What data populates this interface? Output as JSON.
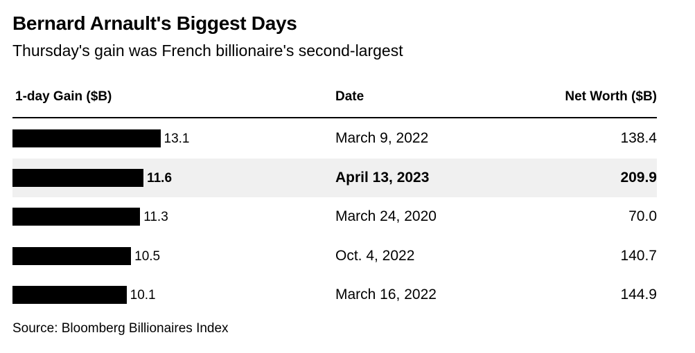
{
  "title": "Bernard Arnault's Biggest Days",
  "subtitle": "Thursday's gain was French billionaire's second-largest",
  "source": "Source: Bloomberg Billionaires Index",
  "chart_data": {
    "type": "table",
    "columns": [
      "1-day Gain ($B)",
      "Date",
      "Net Worth ($B)"
    ],
    "rows": [
      {
        "gain": 13.1,
        "gain_label": "13.1",
        "date": "March 9, 2022",
        "net_worth": "138.4",
        "highlight": false
      },
      {
        "gain": 11.6,
        "gain_label": "11.6",
        "date": "April 13, 2023",
        "net_worth": "209.9",
        "highlight": true
      },
      {
        "gain": 11.3,
        "gain_label": "11.3",
        "date": "March 24, 2020",
        "net_worth": "70.0",
        "highlight": false
      },
      {
        "gain": 10.5,
        "gain_label": "10.5",
        "date": "Oct. 4, 2022",
        "net_worth": "140.7",
        "highlight": false
      },
      {
        "gain": 10.1,
        "gain_label": "10.1",
        "date": "March 16, 2022",
        "net_worth": "144.9",
        "highlight": false
      }
    ],
    "bar_color": "#000000",
    "highlight_color": "#f0f0f0"
  }
}
